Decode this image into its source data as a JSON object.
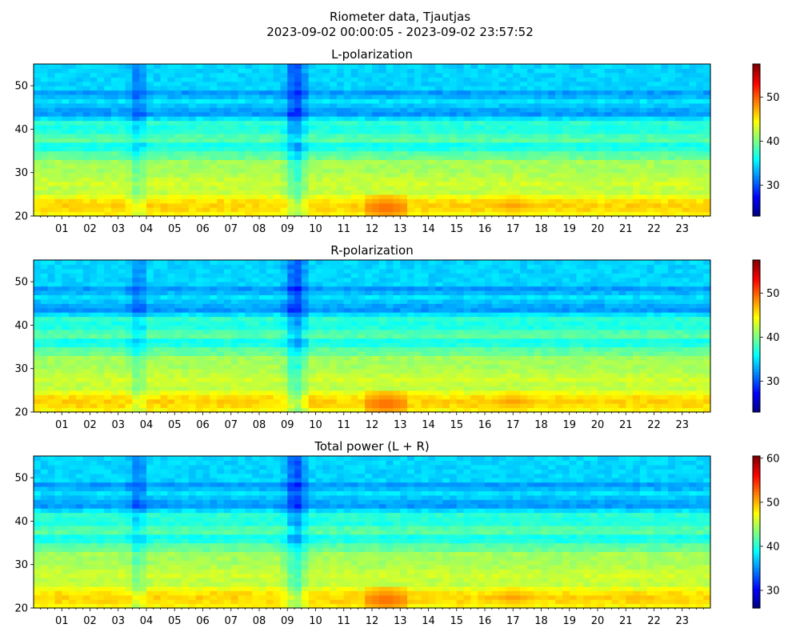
{
  "figure": {
    "title_line1": "Riometer data, Tjautjas",
    "title_line2": "2023-09-02 00:00:05 - 2023-09-02 23:57:52"
  },
  "chart_data": [
    {
      "type": "heatmap",
      "title": "L-polarization",
      "xlabel": "",
      "ylabel": "",
      "x_range_hours": [
        0,
        24
      ],
      "x_tick_labels": [
        "01",
        "02",
        "03",
        "04",
        "05",
        "06",
        "07",
        "08",
        "09",
        "10",
        "11",
        "12",
        "13",
        "14",
        "15",
        "16",
        "17",
        "18",
        "19",
        "20",
        "21",
        "22",
        "23"
      ],
      "ylim": [
        20,
        55
      ],
      "y_ticks": [
        20,
        30,
        40,
        50
      ],
      "colormap": "jet",
      "colorbar": {
        "range": [
          23,
          57.5
        ],
        "ticks": [
          30,
          40,
          50
        ]
      },
      "features": {
        "band_values": [
          [
            20,
            44
          ],
          [
            21,
            45.5
          ],
          [
            22,
            46
          ],
          [
            23,
            46
          ],
          [
            24,
            45
          ],
          [
            25,
            43
          ],
          [
            26,
            42
          ],
          [
            27,
            43
          ],
          [
            28,
            43
          ],
          [
            29,
            42
          ],
          [
            30,
            42
          ],
          [
            31,
            41
          ],
          [
            32,
            42
          ],
          [
            33,
            41
          ],
          [
            34,
            38
          ],
          [
            35,
            40
          ],
          [
            36,
            34
          ],
          [
            37,
            39
          ],
          [
            38,
            39
          ],
          [
            39,
            38
          ],
          [
            40,
            36
          ],
          [
            41,
            38
          ],
          [
            42,
            37
          ],
          [
            43,
            33
          ],
          [
            44,
            32
          ],
          [
            45,
            34
          ],
          [
            46,
            34
          ],
          [
            47,
            36
          ],
          [
            48,
            31
          ],
          [
            49,
            34
          ],
          [
            50,
            35
          ],
          [
            51,
            34
          ],
          [
            52,
            35
          ],
          [
            53,
            34
          ],
          [
            54,
            35
          ],
          [
            55,
            34
          ]
        ],
        "dark_columns": [
          {
            "center": 3.7,
            "width": 0.4,
            "depth": 3
          },
          {
            "center": 9.3,
            "width": 0.5,
            "depth": 5
          }
        ],
        "hot_spots": [
          {
            "center": 12.5,
            "y": 22,
            "width": 0.8,
            "value": 50
          },
          {
            "center": 17,
            "y": 22.5,
            "width": 1.2,
            "value": 48
          }
        ]
      }
    },
    {
      "type": "heatmap",
      "title": "R-polarization",
      "xlabel": "",
      "ylabel": "",
      "x_range_hours": [
        0,
        24
      ],
      "x_tick_labels": [
        "01",
        "02",
        "03",
        "04",
        "05",
        "06",
        "07",
        "08",
        "09",
        "10",
        "11",
        "12",
        "13",
        "14",
        "15",
        "16",
        "17",
        "18",
        "19",
        "20",
        "21",
        "22",
        "23"
      ],
      "ylim": [
        20,
        55
      ],
      "y_ticks": [
        20,
        30,
        40,
        50
      ],
      "colormap": "jet",
      "colorbar": {
        "range": [
          23,
          57.5
        ],
        "ticks": [
          30,
          40,
          50
        ]
      },
      "features": {
        "band_values": [
          [
            20,
            44
          ],
          [
            21,
            45.5
          ],
          [
            22,
            46
          ],
          [
            23,
            46
          ],
          [
            24,
            45
          ],
          [
            25,
            43
          ],
          [
            26,
            42
          ],
          [
            27,
            43
          ],
          [
            28,
            43
          ],
          [
            29,
            42
          ],
          [
            30,
            42
          ],
          [
            31,
            41
          ],
          [
            32,
            42
          ],
          [
            33,
            41
          ],
          [
            34,
            38
          ],
          [
            35,
            40
          ],
          [
            36,
            34
          ],
          [
            37,
            39
          ],
          [
            38,
            39
          ],
          [
            39,
            38
          ],
          [
            40,
            36
          ],
          [
            41,
            38
          ],
          [
            42,
            37
          ],
          [
            43,
            33
          ],
          [
            44,
            32
          ],
          [
            45,
            34
          ],
          [
            46,
            34
          ],
          [
            47,
            36
          ],
          [
            48,
            31
          ],
          [
            49,
            34
          ],
          [
            50,
            35
          ],
          [
            51,
            34
          ],
          [
            52,
            35
          ],
          [
            53,
            34
          ],
          [
            54,
            35
          ],
          [
            55,
            34
          ]
        ],
        "dark_columns": [
          {
            "center": 3.7,
            "width": 0.4,
            "depth": 3
          },
          {
            "center": 9.3,
            "width": 0.5,
            "depth": 5
          }
        ],
        "hot_spots": [
          {
            "center": 12.5,
            "y": 22,
            "width": 0.8,
            "value": 50
          },
          {
            "center": 17,
            "y": 22.5,
            "width": 1.2,
            "value": 48
          }
        ]
      }
    },
    {
      "type": "heatmap",
      "title": "Total power (L + R)",
      "xlabel": "",
      "ylabel": "",
      "x_range_hours": [
        0,
        24
      ],
      "x_tick_labels": [
        "01",
        "02",
        "03",
        "04",
        "05",
        "06",
        "07",
        "08",
        "09",
        "10",
        "11",
        "12",
        "13",
        "14",
        "15",
        "16",
        "17",
        "18",
        "19",
        "20",
        "21",
        "22",
        "23"
      ],
      "ylim": [
        20,
        55
      ],
      "y_ticks": [
        20,
        30,
        40,
        50
      ],
      "colormap": "jet",
      "colorbar": {
        "range": [
          26,
          60.5
        ],
        "ticks": [
          30,
          40,
          50,
          60
        ]
      },
      "features": {
        "band_values": [
          [
            20,
            47
          ],
          [
            21,
            48.5
          ],
          [
            22,
            49
          ],
          [
            23,
            49
          ],
          [
            24,
            48
          ],
          [
            25,
            46
          ],
          [
            26,
            45
          ],
          [
            27,
            46
          ],
          [
            28,
            46
          ],
          [
            29,
            45
          ],
          [
            30,
            45
          ],
          [
            31,
            44
          ],
          [
            32,
            45
          ],
          [
            33,
            44
          ],
          [
            34,
            41
          ],
          [
            35,
            43
          ],
          [
            36,
            37
          ],
          [
            37,
            42
          ],
          [
            38,
            42
          ],
          [
            39,
            41
          ],
          [
            40,
            39
          ],
          [
            41,
            41
          ],
          [
            42,
            40
          ],
          [
            43,
            36
          ],
          [
            44,
            35
          ],
          [
            45,
            37
          ],
          [
            46,
            37
          ],
          [
            47,
            39
          ],
          [
            48,
            34
          ],
          [
            49,
            37
          ],
          [
            50,
            38
          ],
          [
            51,
            37
          ],
          [
            52,
            38
          ],
          [
            53,
            37
          ],
          [
            54,
            38
          ],
          [
            55,
            37
          ]
        ],
        "dark_columns": [
          {
            "center": 3.7,
            "width": 0.4,
            "depth": 3
          },
          {
            "center": 9.3,
            "width": 0.5,
            "depth": 5
          }
        ],
        "hot_spots": [
          {
            "center": 12.5,
            "y": 22,
            "width": 0.8,
            "value": 53
          },
          {
            "center": 17,
            "y": 22.5,
            "width": 1.2,
            "value": 51
          }
        ]
      }
    }
  ]
}
